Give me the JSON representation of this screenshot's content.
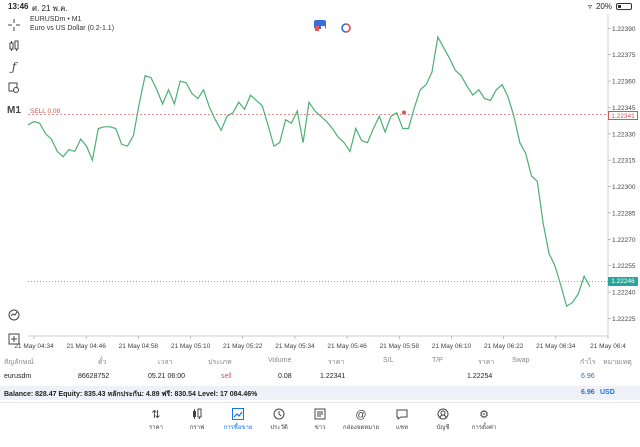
{
  "status_bar": {
    "time": "13:46",
    "date": "ศ. 21 พ.ค.",
    "battery": "20%"
  },
  "chart": {
    "symbol": "EURUSDm • M1",
    "description": "Euro vs US Dollar (0.2-1.1)",
    "sell_label": "SELL 0.08",
    "current_price_tag": "1.22246",
    "open_price_tag": "1.22341",
    "colors": {
      "line": "#4caf73",
      "sell": "#d9534f",
      "current": "#26a69a",
      "grid": "#eeeeee"
    }
  },
  "chart_data": {
    "type": "line",
    "y_ticks": [
      "1.22390",
      "1.22375",
      "1.22360",
      "1.22345",
      "1.22330",
      "1.22315",
      "1.22300",
      "1.22285",
      "1.22270",
      "1.22255",
      "1.22240",
      "1.22225"
    ],
    "x_ticks": [
      "21 May 04:34",
      "21 May 04:46",
      "21 May 04:58",
      "21 May 05:10",
      "21 May 05:22",
      "21 May 05:34",
      "21 May 05:46",
      "21 May 05:58",
      "21 May 06:10",
      "21 May 06:22",
      "21 May 06:34",
      "21 May 06:4"
    ],
    "ylim": [
      1.22215,
      1.22397
    ],
    "sell_level": 1.22341,
    "current_level": 1.22246,
    "values": [
      1.22335,
      1.22337,
      1.22336,
      1.2233,
      1.22327,
      1.2232,
      1.22317,
      1.22321,
      1.2232,
      1.22327,
      1.22323,
      1.22315,
      1.22333,
      1.22334,
      1.22334,
      1.22333,
      1.22324,
      1.22323,
      1.22329,
      1.22347,
      1.22363,
      1.22362,
      1.22355,
      1.22347,
      1.22355,
      1.22347,
      1.2236,
      1.22359,
      1.22353,
      1.2235,
      1.22355,
      1.22345,
      1.22338,
      1.22332,
      1.2234,
      1.22342,
      1.22348,
      1.22344,
      1.22352,
      1.22349,
      1.22346,
      1.22335,
      1.22323,
      1.22325,
      1.22338,
      1.22336,
      1.22343,
      1.22325,
      1.22348,
      1.22343,
      1.2234,
      1.22337,
      1.22333,
      1.22328,
      1.22325,
      1.2232,
      1.22333,
      1.22326,
      1.22325,
      1.22333,
      1.2234,
      1.22331,
      1.2234,
      1.22342,
      1.22333,
      1.22333,
      1.22345,
      1.22355,
      1.22358,
      1.22365,
      1.22385,
      1.22379,
      1.22373,
      1.22366,
      1.22363,
      1.22357,
      1.22352,
      1.22355,
      1.2235,
      1.22349,
      1.22355,
      1.22358,
      1.22351,
      1.2234,
      1.22325,
      1.22319,
      1.22306,
      1.22303,
      1.22279,
      1.22262,
      1.22255,
      1.22244,
      1.22232,
      1.22234,
      1.22239,
      1.22249,
      1.22243
    ]
  },
  "table": {
    "headers": [
      "สัญลักษณ์",
      "ตั๋ว",
      "เวลา",
      "ประเภท",
      "Volume",
      "ราคา",
      "S/L",
      "T/P",
      "ราคา",
      "Swap",
      "กำไร",
      "หมายเหตุ"
    ],
    "row": {
      "symbol": "eurusdm",
      "ticket": "86628752",
      "time": "05.21 06:00",
      "type": "sell",
      "volume": "0.08",
      "price": "1.22341",
      "current_price": "1.22254",
      "profit": "6.96"
    },
    "balance_text": "Balance: 828.47 Equity: 835.43 หลักประกัน: 4.89 ฟรี: 830.54 Level: 17 084.46%",
    "balance_profit": "6.96",
    "balance_currency": "USD"
  },
  "nav": {
    "items": [
      "ราคา",
      "กราฟ",
      "การซื้อขาย",
      "ประวัติ",
      "ข่าว",
      "กล่องจดหมาย",
      "แชท",
      "บัญชี",
      "การตั้งค่า"
    ],
    "active": "การซื้อขาย"
  }
}
